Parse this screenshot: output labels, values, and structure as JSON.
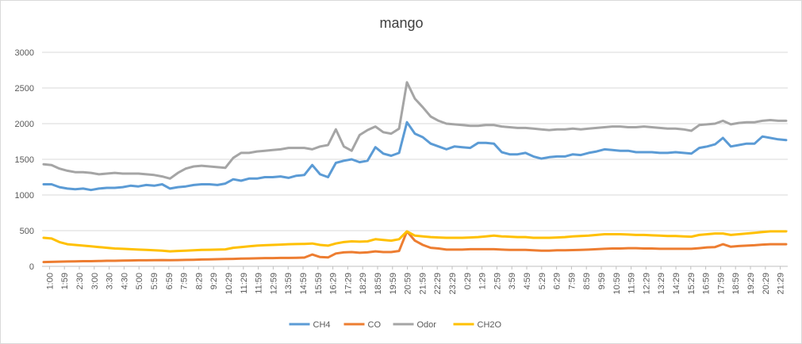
{
  "chart_data": {
    "type": "line",
    "title": "mango",
    "xlabel": "",
    "ylabel": "",
    "ylim": [
      0,
      3000
    ],
    "yticks": [
      0,
      500,
      1000,
      1500,
      2000,
      2500,
      3000
    ],
    "grid": true,
    "legend_position": "bottom",
    "x_tick_labels": [
      "1:00",
      "1:59",
      "2:30",
      "3:00",
      "3:30",
      "4:30",
      "5:00",
      "5:59",
      "6:59",
      "7:59",
      "8:29",
      "9:29",
      "10:29",
      "11:29",
      "11:59",
      "12:59",
      "13:59",
      "14:59",
      "15:59",
      "16:29",
      "17:29",
      "18:29",
      "18:59",
      "19:59",
      "20:59",
      "21:59",
      "22:29",
      "23:29",
      "0:29",
      "1:29",
      "2:59",
      "3:59",
      "4:59",
      "5:29",
      "6:29",
      "7:59",
      "8:59",
      "9:59",
      "10:59",
      "11:59",
      "12:29",
      "13:29",
      "14:29",
      "15:29",
      "16:59",
      "17:59",
      "18:59",
      "19:29",
      "20:29",
      "21:29"
    ],
    "series": [
      {
        "name": "CH4",
        "color": "#5b9bd5",
        "values": [
          1150,
          1150,
          1110,
          1090,
          1080,
          1090,
          1070,
          1090,
          1100,
          1100,
          1110,
          1130,
          1120,
          1140,
          1130,
          1150,
          1090,
          1110,
          1120,
          1140,
          1150,
          1150,
          1140,
          1160,
          1220,
          1200,
          1230,
          1230,
          1250,
          1250,
          1260,
          1240,
          1270,
          1280,
          1420,
          1290,
          1250,
          1450,
          1480,
          1500,
          1460,
          1480,
          1670,
          1580,
          1550,
          1590,
          2020,
          1860,
          1810,
          1720,
          1680,
          1640,
          1680,
          1670,
          1660,
          1730,
          1730,
          1720,
          1600,
          1570,
          1570,
          1590,
          1540,
          1510,
          1530,
          1540,
          1540,
          1570,
          1560,
          1590,
          1610,
          1640,
          1630,
          1620,
          1620,
          1600,
          1600,
          1600,
          1590,
          1590,
          1600,
          1590,
          1580,
          1660,
          1680,
          1710,
          1800,
          1680,
          1700,
          1720,
          1720,
          1820,
          1800,
          1780,
          1770
        ]
      },
      {
        "name": "CO",
        "color": "#ed7d31",
        "values": [
          60,
          62,
          65,
          68,
          70,
          72,
          72,
          75,
          78,
          78,
          80,
          82,
          84,
          84,
          86,
          88,
          86,
          88,
          90,
          92,
          95,
          98,
          100,
          102,
          105,
          108,
          110,
          112,
          115,
          116,
          118,
          118,
          120,
          122,
          165,
          130,
          125,
          180,
          195,
          200,
          190,
          195,
          210,
          200,
          200,
          215,
          490,
          360,
          300,
          260,
          250,
          235,
          235,
          235,
          240,
          240,
          240,
          240,
          235,
          230,
          230,
          230,
          225,
          220,
          220,
          225,
          225,
          228,
          230,
          235,
          240,
          245,
          250,
          250,
          255,
          255,
          250,
          250,
          245,
          245,
          245,
          245,
          245,
          255,
          265,
          270,
          310,
          275,
          285,
          290,
          295,
          305,
          310,
          310,
          310
        ]
      },
      {
        "name": "Odor",
        "color": "#a5a5a5",
        "values": [
          1430,
          1420,
          1370,
          1340,
          1320,
          1320,
          1310,
          1290,
          1300,
          1310,
          1300,
          1300,
          1300,
          1290,
          1280,
          1260,
          1230,
          1310,
          1370,
          1400,
          1410,
          1400,
          1390,
          1380,
          1520,
          1590,
          1590,
          1610,
          1620,
          1630,
          1640,
          1660,
          1660,
          1660,
          1640,
          1680,
          1700,
          1920,
          1680,
          1620,
          1840,
          1910,
          1960,
          1880,
          1860,
          1930,
          2580,
          2350,
          2230,
          2100,
          2040,
          2000,
          1990,
          1980,
          1970,
          1970,
          1980,
          1980,
          1960,
          1950,
          1940,
          1940,
          1930,
          1920,
          1910,
          1920,
          1920,
          1930,
          1920,
          1930,
          1940,
          1950,
          1960,
          1960,
          1950,
          1950,
          1960,
          1950,
          1940,
          1930,
          1930,
          1920,
          1900,
          1980,
          1990,
          2000,
          2040,
          1990,
          2010,
          2020,
          2020,
          2040,
          2050,
          2040,
          2040
        ]
      },
      {
        "name": "CH2O",
        "color": "#ffc000",
        "values": [
          400,
          390,
          340,
          310,
          300,
          290,
          280,
          270,
          260,
          250,
          245,
          240,
          235,
          230,
          225,
          220,
          210,
          215,
          220,
          225,
          230,
          232,
          235,
          238,
          260,
          270,
          280,
          290,
          295,
          300,
          305,
          310,
          312,
          314,
          320,
          300,
          290,
          320,
          340,
          350,
          345,
          350,
          380,
          370,
          360,
          380,
          490,
          430,
          420,
          410,
          405,
          400,
          400,
          400,
          405,
          410,
          420,
          430,
          420,
          415,
          410,
          410,
          400,
          400,
          400,
          405,
          410,
          420,
          425,
          430,
          440,
          450,
          450,
          450,
          445,
          440,
          440,
          435,
          430,
          425,
          425,
          420,
          415,
          440,
          450,
          460,
          460,
          440,
          450,
          460,
          470,
          480,
          490,
          490,
          490
        ]
      }
    ]
  }
}
